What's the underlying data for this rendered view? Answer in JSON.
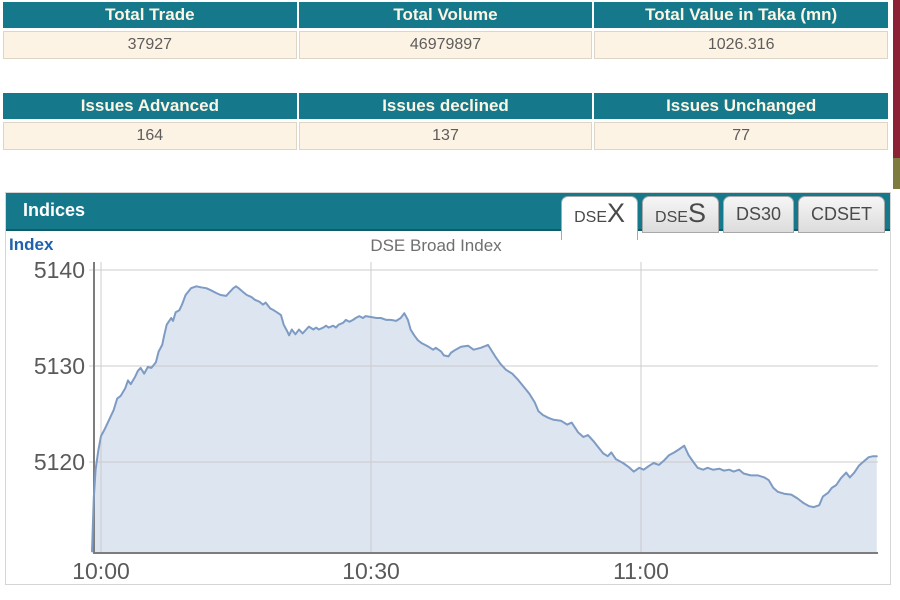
{
  "colors": {
    "accent_teal": "#16798b",
    "accent_teal_dark": "#0d5d6b",
    "row_cream": "#fdf3e4",
    "strip_maroon": "#8c2136",
    "strip_olive": "#7d7c3e",
    "line_blue": "#7e9bc3",
    "fill_blue": "#dde5f1",
    "index_label_blue": "#2061ae"
  },
  "summary_tables": [
    {
      "headers": [
        "Total Trade",
        "Total Volume",
        "Total Value in Taka (mn)"
      ],
      "values": [
        "37927",
        "46979897",
        "1026.316"
      ]
    },
    {
      "headers": [
        "Issues Advanced",
        "Issues declined",
        "Issues Unchanged"
      ],
      "values": [
        "164",
        "137",
        "77"
      ]
    }
  ],
  "indices": {
    "title": "Indices",
    "index_label": "Index",
    "tabs": [
      {
        "label": "DSEX",
        "small": "DSE",
        "big": "X",
        "active": true
      },
      {
        "label": "DSES",
        "small": "DSE",
        "big": "S",
        "active": false
      },
      {
        "label": "DS30",
        "active": false
      },
      {
        "label": "CDSET",
        "active": false
      }
    ]
  },
  "chart_data": {
    "type": "area",
    "title": "DSE Broad Index",
    "series_name": "DSE Broad Index",
    "x_unit": "minutes_after_10:00",
    "yticks": [
      5140,
      5130,
      5120
    ],
    "xticks": [
      {
        "t": 0,
        "label": "10:00"
      },
      {
        "t": 30,
        "label": "10:30"
      },
      {
        "t": 60,
        "label": "11:00"
      }
    ],
    "ylim": [
      5110.5,
      5141.5
    ],
    "xlim_minutes": [
      -1.2,
      86.5
    ],
    "grid": true,
    "legend": "none",
    "points": [
      [
        -1.0,
        5110.7
      ],
      [
        -0.9,
        5113.5
      ],
      [
        -0.8,
        5116.3
      ],
      [
        -0.6,
        5119.2
      ],
      [
        -0.3,
        5121.2
      ],
      [
        0,
        5122.7
      ],
      [
        0.4,
        5123.4
      ],
      [
        0.9,
        5124.4
      ],
      [
        1.4,
        5125.4
      ],
      [
        1.8,
        5126.6
      ],
      [
        2.2,
        5126.9
      ],
      [
        2.7,
        5127.7
      ],
      [
        3.0,
        5128.5
      ],
      [
        3.3,
        5128.1
      ],
      [
        3.8,
        5128.9
      ],
      [
        4.1,
        5129.5
      ],
      [
        4.4,
        5129.8
      ],
      [
        4.8,
        5129.2
      ],
      [
        5.2,
        5129.9
      ],
      [
        5.6,
        5129.8
      ],
      [
        6.1,
        5130.4
      ],
      [
        6.4,
        5131.5
      ],
      [
        6.8,
        5132.2
      ],
      [
        7.0,
        5133.1
      ],
      [
        7.3,
        5134.3
      ],
      [
        7.8,
        5135.0
      ],
      [
        8.0,
        5134.7
      ],
      [
        8.3,
        5135.6
      ],
      [
        8.7,
        5135.8
      ],
      [
        9.0,
        5136.4
      ],
      [
        9.4,
        5137.4
      ],
      [
        10.0,
        5138.1
      ],
      [
        10.6,
        5138.3
      ],
      [
        11.1,
        5138.2
      ],
      [
        11.7,
        5138.1
      ],
      [
        12.2,
        5137.9
      ],
      [
        12.8,
        5137.6
      ],
      [
        13.3,
        5137.4
      ],
      [
        13.9,
        5137.3
      ],
      [
        14.2,
        5137.6
      ],
      [
        14.7,
        5138.1
      ],
      [
        15.0,
        5138.3
      ],
      [
        15.3,
        5138.1
      ],
      [
        15.8,
        5137.7
      ],
      [
        16.2,
        5137.4
      ],
      [
        16.7,
        5137.2
      ],
      [
        17.1,
        5136.9
      ],
      [
        17.6,
        5136.7
      ],
      [
        18.0,
        5136.4
      ],
      [
        18.3,
        5136.6
      ],
      [
        18.8,
        5136.0
      ],
      [
        19.2,
        5135.8
      ],
      [
        19.7,
        5135.5
      ],
      [
        20.0,
        5135.3
      ],
      [
        20.3,
        5134.3
      ],
      [
        20.7,
        5133.6
      ],
      [
        20.9,
        5133.2
      ],
      [
        21.2,
        5133.8
      ],
      [
        21.6,
        5133.3
      ],
      [
        22.0,
        5133.8
      ],
      [
        22.4,
        5133.4
      ],
      [
        22.8,
        5133.8
      ],
      [
        23.1,
        5134.1
      ],
      [
        23.6,
        5133.8
      ],
      [
        23.9,
        5134.0
      ],
      [
        24.2,
        5133.8
      ],
      [
        24.7,
        5134.0
      ],
      [
        25.0,
        5134.2
      ],
      [
        25.3,
        5134.0
      ],
      [
        25.8,
        5134.2
      ],
      [
        26.1,
        5134.0
      ],
      [
        26.4,
        5134.3
      ],
      [
        26.9,
        5134.5
      ],
      [
        27.2,
        5134.8
      ],
      [
        27.6,
        5134.6
      ],
      [
        28.0,
        5134.8
      ],
      [
        28.3,
        5135.0
      ],
      [
        28.7,
        5135.2
      ],
      [
        29.1,
        5135.0
      ],
      [
        29.4,
        5135.2
      ],
      [
        30.0,
        5135.1
      ],
      [
        30.6,
        5135.0
      ],
      [
        31.1,
        5135.0
      ],
      [
        31.7,
        5134.8
      ],
      [
        32.2,
        5134.8
      ],
      [
        32.8,
        5134.7
      ],
      [
        33.3,
        5135.0
      ],
      [
        33.7,
        5135.5
      ],
      [
        34.1,
        5134.8
      ],
      [
        34.4,
        5133.8
      ],
      [
        34.8,
        5133.2
      ],
      [
        35.2,
        5132.7
      ],
      [
        35.6,
        5132.4
      ],
      [
        36.0,
        5132.2
      ],
      [
        36.4,
        5132.0
      ],
      [
        36.9,
        5131.7
      ],
      [
        37.2,
        5131.9
      ],
      [
        37.8,
        5131.5
      ],
      [
        38.1,
        5131.1
      ],
      [
        38.6,
        5131.0
      ],
      [
        38.9,
        5131.4
      ],
      [
        39.4,
        5131.7
      ],
      [
        40.0,
        5132.0
      ],
      [
        40.8,
        5132.1
      ],
      [
        41.4,
        5131.7
      ],
      [
        42.2,
        5131.9
      ],
      [
        43.0,
        5132.2
      ],
      [
        43.8,
        5131.0
      ],
      [
        44.4,
        5130.2
      ],
      [
        45.0,
        5129.6
      ],
      [
        45.7,
        5129.2
      ],
      [
        46.3,
        5128.6
      ],
      [
        47.0,
        5127.8
      ],
      [
        47.6,
        5127.1
      ],
      [
        48.2,
        5126.2
      ],
      [
        48.6,
        5125.3
      ],
      [
        49.1,
        5124.9
      ],
      [
        49.7,
        5124.6
      ],
      [
        50.3,
        5124.4
      ],
      [
        51.1,
        5124.3
      ],
      [
        51.8,
        5123.9
      ],
      [
        52.3,
        5124.1
      ],
      [
        53.0,
        5123.1
      ],
      [
        53.6,
        5122.6
      ],
      [
        54.1,
        5122.8
      ],
      [
        54.7,
        5122.2
      ],
      [
        55.2,
        5121.6
      ],
      [
        55.8,
        5120.9
      ],
      [
        56.3,
        5120.6
      ],
      [
        56.7,
        5121.0
      ],
      [
        57.2,
        5120.3
      ],
      [
        58.0,
        5119.9
      ],
      [
        58.6,
        5119.5
      ],
      [
        59.2,
        5119.0
      ],
      [
        59.8,
        5119.4
      ],
      [
        60.3,
        5119.2
      ],
      [
        60.9,
        5119.6
      ],
      [
        61.4,
        5119.9
      ],
      [
        62.0,
        5119.7
      ],
      [
        62.6,
        5120.2
      ],
      [
        63.1,
        5120.7
      ],
      [
        63.7,
        5121.0
      ],
      [
        64.2,
        5121.3
      ],
      [
        64.8,
        5121.7
      ],
      [
        65.3,
        5120.7
      ],
      [
        65.9,
        5119.9
      ],
      [
        66.3,
        5119.4
      ],
      [
        66.9,
        5119.2
      ],
      [
        67.4,
        5119.4
      ],
      [
        68.0,
        5119.2
      ],
      [
        68.7,
        5119.3
      ],
      [
        69.2,
        5119.1
      ],
      [
        69.8,
        5119.2
      ],
      [
        70.3,
        5119.0
      ],
      [
        70.9,
        5119.2
      ],
      [
        71.4,
        5118.8
      ],
      [
        72.2,
        5118.6
      ],
      [
        73.0,
        5118.6
      ],
      [
        73.7,
        5118.4
      ],
      [
        74.2,
        5118.1
      ],
      [
        74.7,
        5117.3
      ],
      [
        75.2,
        5116.9
      ],
      [
        75.9,
        5116.7
      ],
      [
        76.7,
        5116.6
      ],
      [
        77.4,
        5116.2
      ],
      [
        78.1,
        5115.7
      ],
      [
        78.7,
        5115.4
      ],
      [
        79.2,
        5115.3
      ],
      [
        79.8,
        5115.5
      ],
      [
        80.2,
        5116.4
      ],
      [
        80.8,
        5116.8
      ],
      [
        81.2,
        5117.3
      ],
      [
        81.7,
        5117.6
      ],
      [
        82.2,
        5118.3
      ],
      [
        82.8,
        5118.9
      ],
      [
        83.2,
        5118.4
      ],
      [
        83.7,
        5118.9
      ],
      [
        84.2,
        5119.6
      ],
      [
        84.8,
        5120.1
      ],
      [
        85.3,
        5120.5
      ],
      [
        85.8,
        5120.6
      ],
      [
        86.2,
        5120.6
      ]
    ]
  }
}
